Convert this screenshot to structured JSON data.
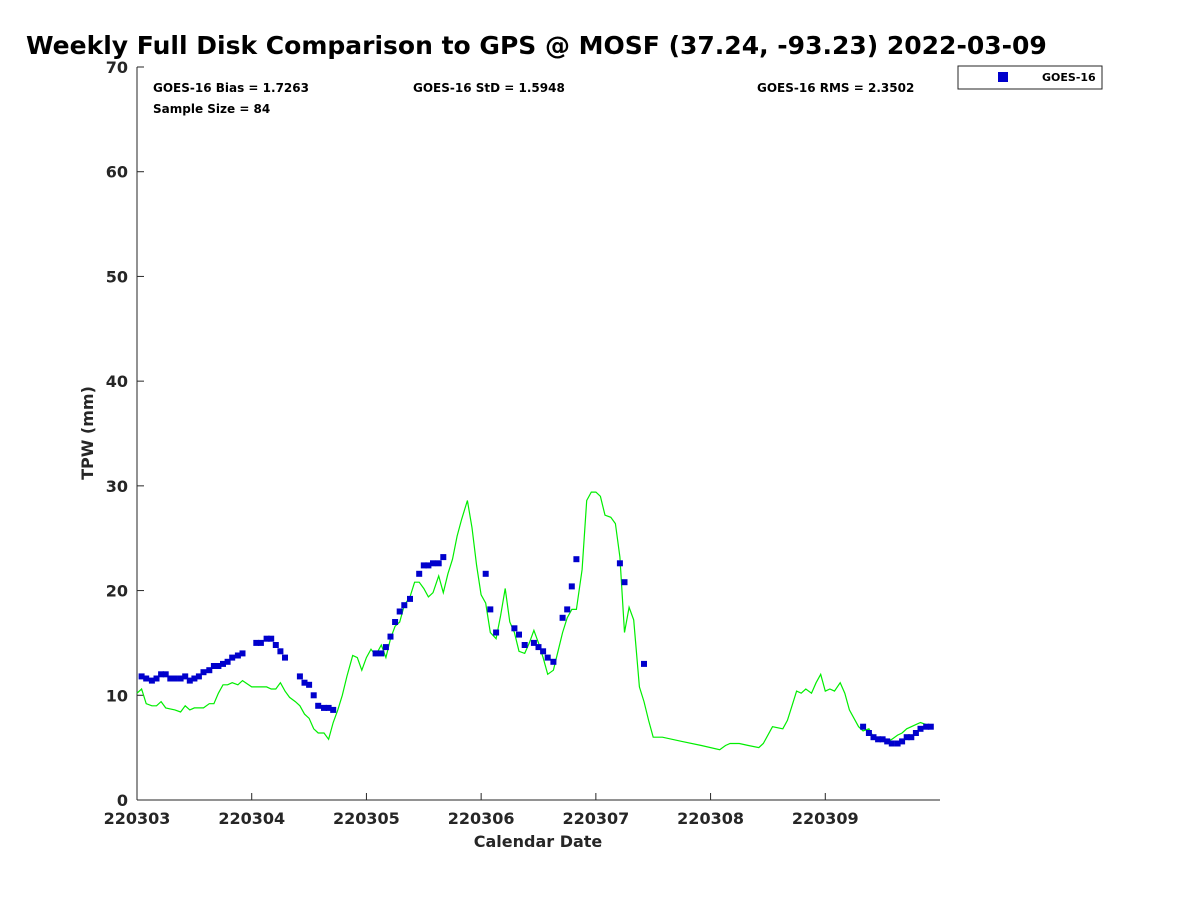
{
  "chart_data": {
    "type": "scatter",
    "title": "Weekly Full Disk Comparison to GPS @ MOSF (37.24, -93.23) 2022-03-09",
    "xlabel": "Calendar Date",
    "ylabel": "TPW (mm)",
    "xlim": [
      220303,
      220310
    ],
    "ylim": [
      0,
      70
    ],
    "x_ticks": [
      "220303",
      "220304",
      "220305",
      "220306",
      "220307",
      "220308",
      "220309"
    ],
    "y_ticks": [
      "0",
      "10",
      "20",
      "30",
      "40",
      "50",
      "60",
      "70"
    ],
    "grid": false,
    "legend_position": "top-right, outside plot",
    "stats": {
      "bias": "GOES-16 Bias = 1.7263",
      "std": "GOES-16 StD = 1.5948",
      "rms": "GOES-16 RMS = 2.3502",
      "sample_size": "Sample Size = 84"
    },
    "series": [
      {
        "name": "GOES-16",
        "marker": "square",
        "color": "#0000cc",
        "points": [
          [
            220303.04,
            11.8
          ],
          [
            220303.08,
            11.6
          ],
          [
            220303.13,
            11.4
          ],
          [
            220303.17,
            11.6
          ],
          [
            220303.21,
            12.0
          ],
          [
            220303.25,
            12.0
          ],
          [
            220303.29,
            11.6
          ],
          [
            220303.33,
            11.6
          ],
          [
            220303.38,
            11.6
          ],
          [
            220303.42,
            11.8
          ],
          [
            220303.46,
            11.4
          ],
          [
            220303.5,
            11.6
          ],
          [
            220303.54,
            11.8
          ],
          [
            220303.58,
            12.2
          ],
          [
            220303.63,
            12.4
          ],
          [
            220303.67,
            12.8
          ],
          [
            220303.71,
            12.8
          ],
          [
            220303.75,
            13.0
          ],
          [
            220303.79,
            13.2
          ],
          [
            220303.83,
            13.6
          ],
          [
            220303.88,
            13.8
          ],
          [
            220303.92,
            14.0
          ],
          [
            220304.04,
            15.0
          ],
          [
            220304.08,
            15.0
          ],
          [
            220304.13,
            15.4
          ],
          [
            220304.17,
            15.4
          ],
          [
            220304.21,
            14.8
          ],
          [
            220304.25,
            14.2
          ],
          [
            220304.29,
            13.6
          ],
          [
            220304.42,
            11.8
          ],
          [
            220304.46,
            11.2
          ],
          [
            220304.5,
            11.0
          ],
          [
            220304.54,
            10.0
          ],
          [
            220304.58,
            9.0
          ],
          [
            220304.63,
            8.8
          ],
          [
            220304.67,
            8.8
          ],
          [
            220304.71,
            8.6
          ],
          [
            220305.08,
            14.0
          ],
          [
            220305.13,
            14.0
          ],
          [
            220305.17,
            14.6
          ],
          [
            220305.21,
            15.6
          ],
          [
            220305.25,
            17.0
          ],
          [
            220305.29,
            18.0
          ],
          [
            220305.33,
            18.6
          ],
          [
            220305.38,
            19.2
          ],
          [
            220305.46,
            21.6
          ],
          [
            220305.5,
            22.4
          ],
          [
            220305.54,
            22.4
          ],
          [
            220305.58,
            22.6
          ],
          [
            220305.63,
            22.6
          ],
          [
            220305.67,
            23.2
          ],
          [
            220306.04,
            21.6
          ],
          [
            220306.08,
            18.2
          ],
          [
            220306.13,
            16.0
          ],
          [
            220306.29,
            16.4
          ],
          [
            220306.33,
            15.8
          ],
          [
            220306.38,
            14.8
          ],
          [
            220306.46,
            15.0
          ],
          [
            220306.5,
            14.6
          ],
          [
            220306.54,
            14.2
          ],
          [
            220306.58,
            13.6
          ],
          [
            220306.63,
            13.2
          ],
          [
            220306.71,
            17.4
          ],
          [
            220306.75,
            18.2
          ],
          [
            220306.79,
            20.4
          ],
          [
            220306.83,
            23.0
          ],
          [
            220307.21,
            22.6
          ],
          [
            220307.25,
            20.8
          ],
          [
            220307.42,
            13.0
          ],
          [
            220309.33,
            7.0
          ],
          [
            220309.38,
            6.4
          ],
          [
            220309.42,
            6.0
          ],
          [
            220309.46,
            5.8
          ],
          [
            220309.5,
            5.8
          ],
          [
            220309.54,
            5.6
          ],
          [
            220309.58,
            5.4
          ],
          [
            220309.63,
            5.4
          ],
          [
            220309.67,
            5.6
          ],
          [
            220309.71,
            6.0
          ],
          [
            220309.75,
            6.0
          ],
          [
            220309.79,
            6.4
          ],
          [
            220309.83,
            6.8
          ],
          [
            220309.88,
            7.0
          ],
          [
            220309.92,
            7.0
          ]
        ]
      },
      {
        "marker": "line",
        "color": "#00ee00",
        "points": [
          [
            220303.0,
            10.2
          ],
          [
            220303.04,
            10.6
          ],
          [
            220303.08,
            9.2
          ],
          [
            220303.13,
            9.0
          ],
          [
            220303.17,
            9.0
          ],
          [
            220303.21,
            9.4
          ],
          [
            220303.25,
            8.8
          ],
          [
            220303.33,
            8.6
          ],
          [
            220303.38,
            8.4
          ],
          [
            220303.42,
            9.0
          ],
          [
            220303.46,
            8.6
          ],
          [
            220303.5,
            8.8
          ],
          [
            220303.58,
            8.8
          ],
          [
            220303.63,
            9.2
          ],
          [
            220303.67,
            9.2
          ],
          [
            220303.71,
            10.2
          ],
          [
            220303.75,
            11.0
          ],
          [
            220303.79,
            11.0
          ],
          [
            220303.83,
            11.2
          ],
          [
            220303.88,
            11.0
          ],
          [
            220303.92,
            11.4
          ],
          [
            220304.0,
            10.8
          ],
          [
            220304.08,
            10.8
          ],
          [
            220304.13,
            10.8
          ],
          [
            220304.17,
            10.6
          ],
          [
            220304.21,
            10.6
          ],
          [
            220304.25,
            11.2
          ],
          [
            220304.29,
            10.4
          ],
          [
            220304.33,
            9.8
          ],
          [
            220304.38,
            9.4
          ],
          [
            220304.42,
            9.0
          ],
          [
            220304.46,
            8.2
          ],
          [
            220304.5,
            7.8
          ],
          [
            220304.54,
            6.8
          ],
          [
            220304.58,
            6.4
          ],
          [
            220304.63,
            6.4
          ],
          [
            220304.67,
            5.8
          ],
          [
            220304.71,
            7.4
          ],
          [
            220304.75,
            8.6
          ],
          [
            220304.79,
            10.0
          ],
          [
            220304.83,
            11.8
          ],
          [
            220304.88,
            13.8
          ],
          [
            220304.92,
            13.6
          ],
          [
            220304.96,
            12.4
          ],
          [
            220305.0,
            13.6
          ],
          [
            220305.04,
            14.4
          ],
          [
            220305.08,
            13.8
          ],
          [
            220305.13,
            14.8
          ],
          [
            220305.17,
            13.6
          ],
          [
            220305.21,
            15.4
          ],
          [
            220305.25,
            16.6
          ],
          [
            220305.29,
            17.0
          ],
          [
            220305.33,
            18.6
          ],
          [
            220305.38,
            19.4
          ],
          [
            220305.42,
            20.8
          ],
          [
            220305.46,
            20.8
          ],
          [
            220305.5,
            20.2
          ],
          [
            220305.54,
            19.4
          ],
          [
            220305.58,
            19.8
          ],
          [
            220305.63,
            21.4
          ],
          [
            220305.67,
            19.8
          ],
          [
            220305.71,
            21.6
          ],
          [
            220305.75,
            23.0
          ],
          [
            220305.79,
            25.2
          ],
          [
            220305.83,
            26.8
          ],
          [
            220305.88,
            28.6
          ],
          [
            220305.92,
            26.0
          ],
          [
            220305.96,
            22.4
          ],
          [
            220306.0,
            19.6
          ],
          [
            220306.04,
            18.8
          ],
          [
            220306.08,
            16.0
          ],
          [
            220306.13,
            15.4
          ],
          [
            220306.17,
            17.6
          ],
          [
            220306.21,
            20.2
          ],
          [
            220306.25,
            17.0
          ],
          [
            220306.29,
            16.0
          ],
          [
            220306.33,
            14.2
          ],
          [
            220306.38,
            14.0
          ],
          [
            220306.42,
            15.0
          ],
          [
            220306.46,
            16.2
          ],
          [
            220306.5,
            15.0
          ],
          [
            220306.54,
            13.6
          ],
          [
            220306.58,
            12.0
          ],
          [
            220306.63,
            12.4
          ],
          [
            220306.67,
            14.2
          ],
          [
            220306.71,
            16.0
          ],
          [
            220306.75,
            17.4
          ],
          [
            220306.79,
            18.2
          ],
          [
            220306.83,
            18.2
          ],
          [
            220306.88,
            22.0
          ],
          [
            220306.92,
            28.6
          ],
          [
            220306.96,
            29.4
          ],
          [
            220307.0,
            29.4
          ],
          [
            220307.04,
            29.0
          ],
          [
            220307.08,
            27.2
          ],
          [
            220307.13,
            27.0
          ],
          [
            220307.17,
            26.4
          ],
          [
            220307.21,
            23.2
          ],
          [
            220307.25,
            16.0
          ],
          [
            220307.29,
            18.4
          ],
          [
            220307.33,
            17.2
          ],
          [
            220307.38,
            10.8
          ],
          [
            220307.42,
            9.4
          ],
          [
            220307.46,
            7.6
          ],
          [
            220307.5,
            6.0
          ],
          [
            220307.58,
            6.0
          ],
          [
            220307.75,
            5.6
          ],
          [
            220307.92,
            5.2
          ],
          [
            220308.08,
            4.8
          ],
          [
            220308.13,
            5.2
          ],
          [
            220308.17,
            5.4
          ],
          [
            220308.25,
            5.4
          ],
          [
            220308.33,
            5.2
          ],
          [
            220308.42,
            5.0
          ],
          [
            220308.46,
            5.4
          ],
          [
            220308.54,
            7.0
          ],
          [
            220308.63,
            6.8
          ],
          [
            220308.67,
            7.6
          ],
          [
            220308.71,
            9.0
          ],
          [
            220308.75,
            10.4
          ],
          [
            220308.79,
            10.2
          ],
          [
            220308.83,
            10.6
          ],
          [
            220308.88,
            10.2
          ],
          [
            220308.92,
            11.2
          ],
          [
            220308.96,
            12.0
          ],
          [
            220309.0,
            10.4
          ],
          [
            220309.04,
            10.6
          ],
          [
            220309.08,
            10.4
          ],
          [
            220309.13,
            11.2
          ],
          [
            220309.17,
            10.2
          ],
          [
            220309.21,
            8.6
          ],
          [
            220309.25,
            7.8
          ],
          [
            220309.29,
            7.0
          ],
          [
            220309.33,
            6.6
          ],
          [
            220309.38,
            6.8
          ],
          [
            220309.42,
            6.0
          ],
          [
            220309.46,
            5.8
          ],
          [
            220309.5,
            5.6
          ],
          [
            220309.54,
            5.6
          ],
          [
            220309.58,
            5.8
          ],
          [
            220309.63,
            6.2
          ],
          [
            220309.67,
            6.4
          ],
          [
            220309.71,
            6.8
          ],
          [
            220309.75,
            7.0
          ],
          [
            220309.79,
            7.2
          ],
          [
            220309.83,
            7.4
          ],
          [
            220309.88,
            7.2
          ],
          [
            220309.92,
            7.2
          ]
        ]
      }
    ]
  }
}
